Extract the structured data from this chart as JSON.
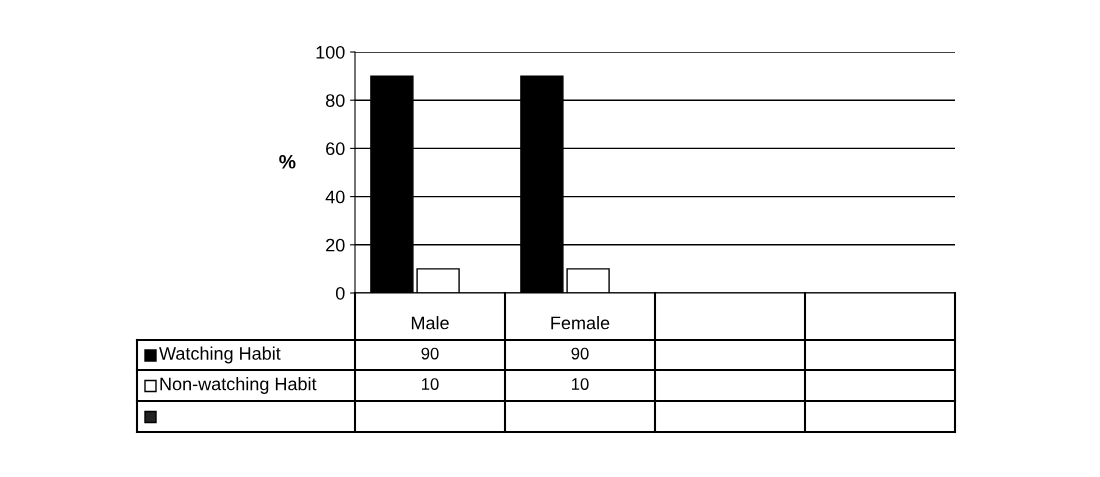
{
  "chart_data": {
    "type": "bar",
    "categories": [
      "Male",
      "Female",
      null,
      null
    ],
    "series": [
      {
        "name": "Watching Habit",
        "color": "#000000",
        "values": [
          90,
          90,
          null,
          null
        ]
      },
      {
        "name": "Non-watching Habit",
        "color": "#ffffff",
        "values": [
          10,
          10,
          null,
          null
        ]
      },
      {
        "color": "#222222",
        "values": [
          null,
          null,
          null,
          null
        ]
      }
    ],
    "ylabel": "%",
    "ylim": [
      0,
      100
    ],
    "yticks": [
      0,
      20,
      40,
      60,
      80,
      100
    ],
    "grid": "y",
    "legend": "bottom left",
    "data_labels": true
  }
}
